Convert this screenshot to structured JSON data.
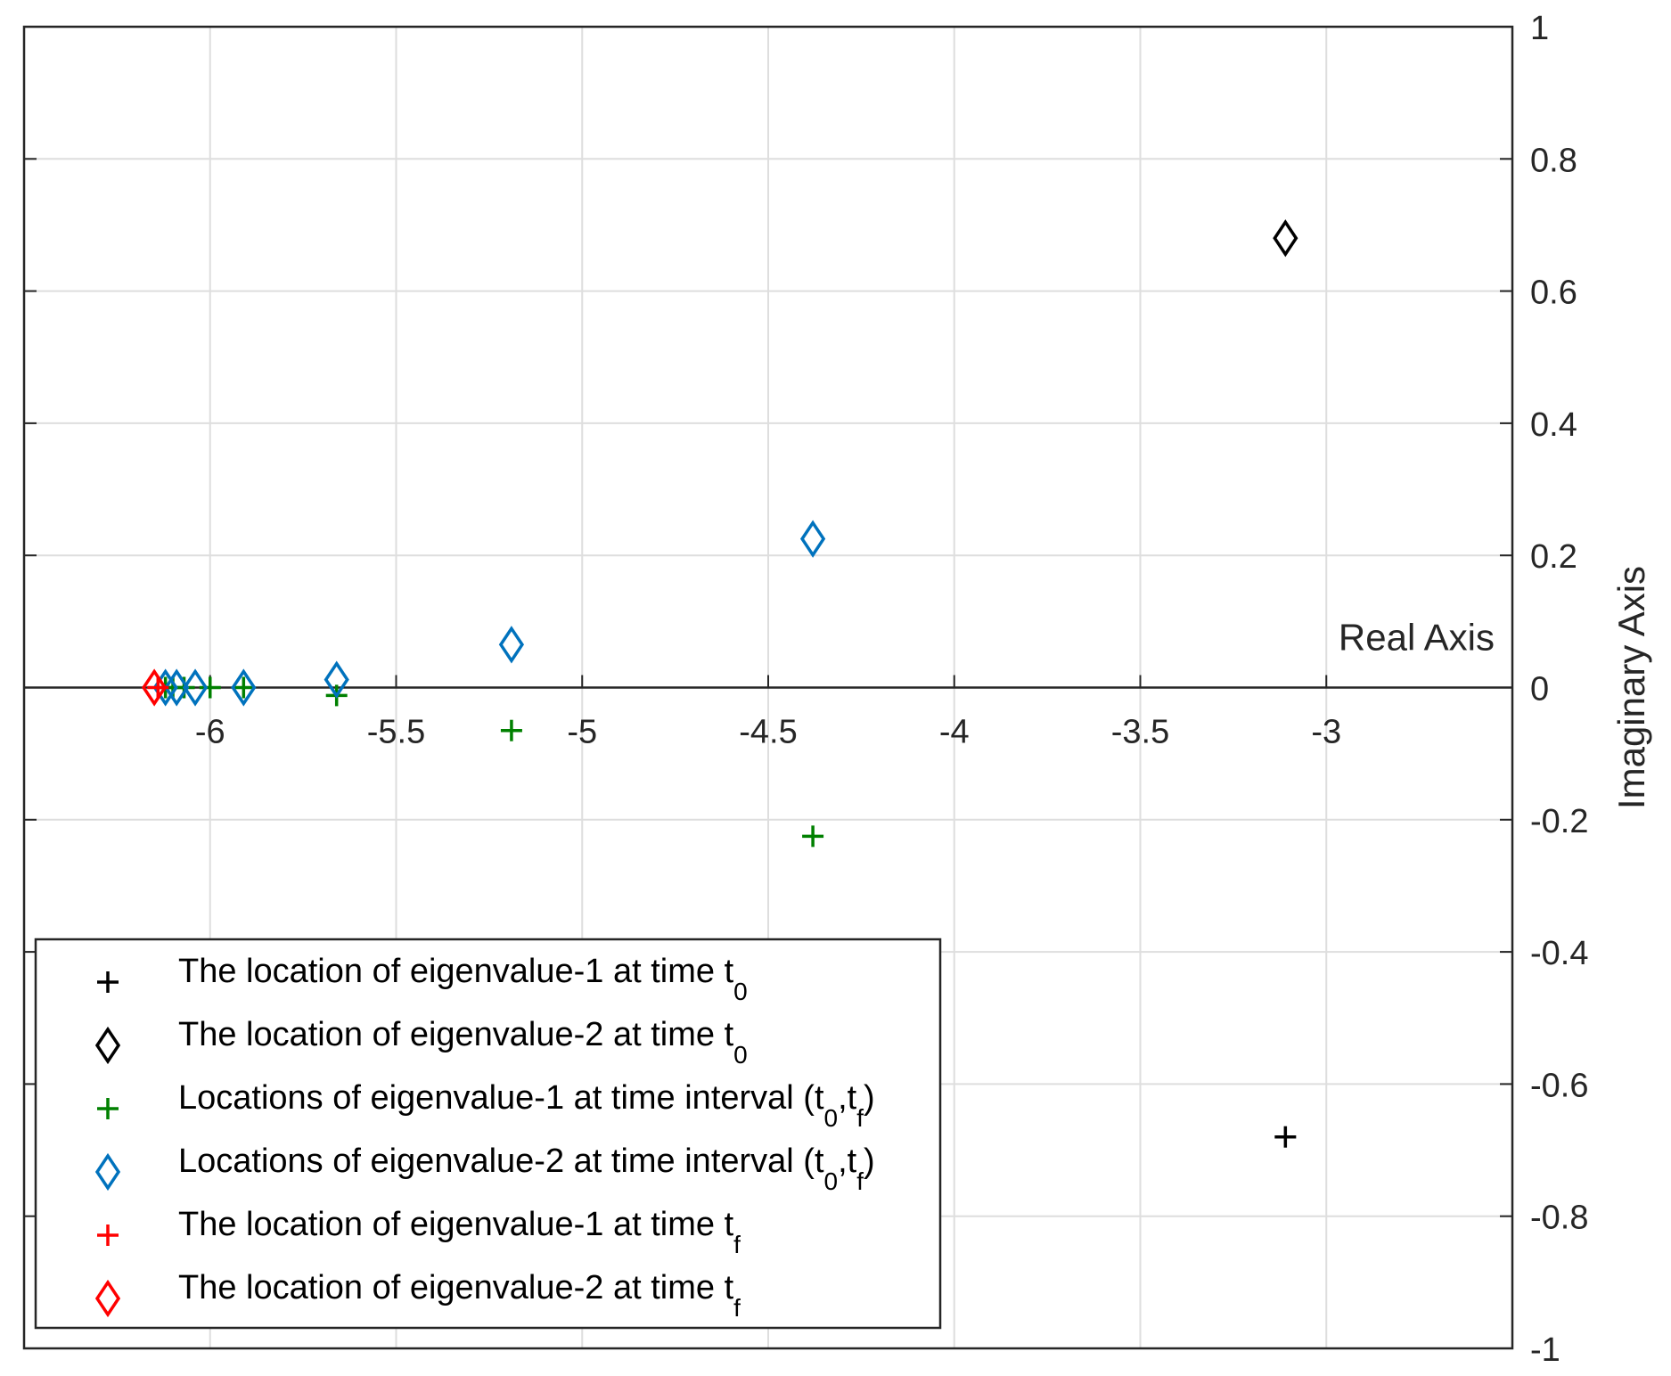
{
  "chart_data": {
    "type": "scatter",
    "title": "",
    "xlabel": "Real Axis",
    "ylabel": "Imaginary Axis",
    "xlim": [
      -6.5,
      -2.5
    ],
    "ylim": [
      -1,
      1
    ],
    "grid": true,
    "x_ticks": [
      -6,
      -5.5,
      -5,
      -4.5,
      -4,
      -3.5,
      -3
    ],
    "x_tick_labels": [
      "-6",
      "-5.5",
      "-5",
      "-4.5",
      "-4",
      "-3.5",
      "-3"
    ],
    "y_ticks": [
      1,
      0.8,
      0.6,
      0.4,
      0.2,
      0,
      -0.2,
      -0.4,
      -0.6,
      -0.8,
      -1
    ],
    "y_tick_labels": [
      "1",
      "0.8",
      "0.6",
      "0.4",
      "0.2",
      "0",
      "-0.2",
      "-0.4",
      "-0.6",
      "-0.8",
      "-1"
    ],
    "legend_position": "bottom-left",
    "series": [
      {
        "name": "The location of eigenvalue-1 at time t0",
        "legend_text": "The location of eigenvalue-1 at time t",
        "legend_sub": "0",
        "marker": "plus",
        "color": "#000000",
        "points": [
          [
            -3.11,
            -0.68
          ]
        ]
      },
      {
        "name": "The location of eigenvalue-2 at time t0",
        "legend_text": "The location of eigenvalue-2 at time t",
        "legend_sub": "0",
        "marker": "diamond",
        "color": "#000000",
        "points": [
          [
            -3.11,
            0.68
          ]
        ]
      },
      {
        "name": "Locations of eigenvalue-1 at time interval (t0,tf)",
        "legend_text": "Locations of eigenvalue-1 at time interval (t",
        "legend_sub": "0",
        "legend_mid": ",t",
        "legend_sub2": "f",
        "legend_tail": ")",
        "marker": "plus",
        "color": "#008000",
        "points": [
          [
            -4.38,
            -0.225
          ],
          [
            -5.19,
            -0.065
          ],
          [
            -5.66,
            -0.012
          ],
          [
            -5.91,
            0
          ],
          [
            -6.0,
            0
          ],
          [
            -6.07,
            0
          ],
          [
            -6.1,
            0
          ],
          [
            -6.12,
            0
          ]
        ]
      },
      {
        "name": "Locations of eigenvalue-2 at time interval (t0,tf)",
        "legend_text": "Locations of eigenvalue-2 at time interval (t",
        "legend_sub": "0",
        "legend_mid": ",t",
        "legend_sub2": "f",
        "legend_tail": ")",
        "marker": "diamond",
        "color": "#0072BD",
        "points": [
          [
            -4.38,
            0.225
          ],
          [
            -5.19,
            0.065
          ],
          [
            -5.66,
            0.012
          ],
          [
            -5.91,
            0
          ],
          [
            -6.04,
            0
          ],
          [
            -6.09,
            0
          ],
          [
            -6.12,
            0
          ]
        ]
      },
      {
        "name": "The location of eigenvalue-1 at time tf",
        "legend_text": "The location of eigenvalue-1 at time t",
        "legend_sub": "f",
        "marker": "plus",
        "color": "#ff0000",
        "points": [
          [
            -6.14,
            0
          ]
        ]
      },
      {
        "name": "The location of eigenvalue-2 at time tf",
        "legend_text": "The location of eigenvalue-2 at time t",
        "legend_sub": "f",
        "marker": "diamond",
        "color": "#ff0000",
        "points": [
          [
            -6.15,
            0
          ]
        ]
      }
    ]
  }
}
